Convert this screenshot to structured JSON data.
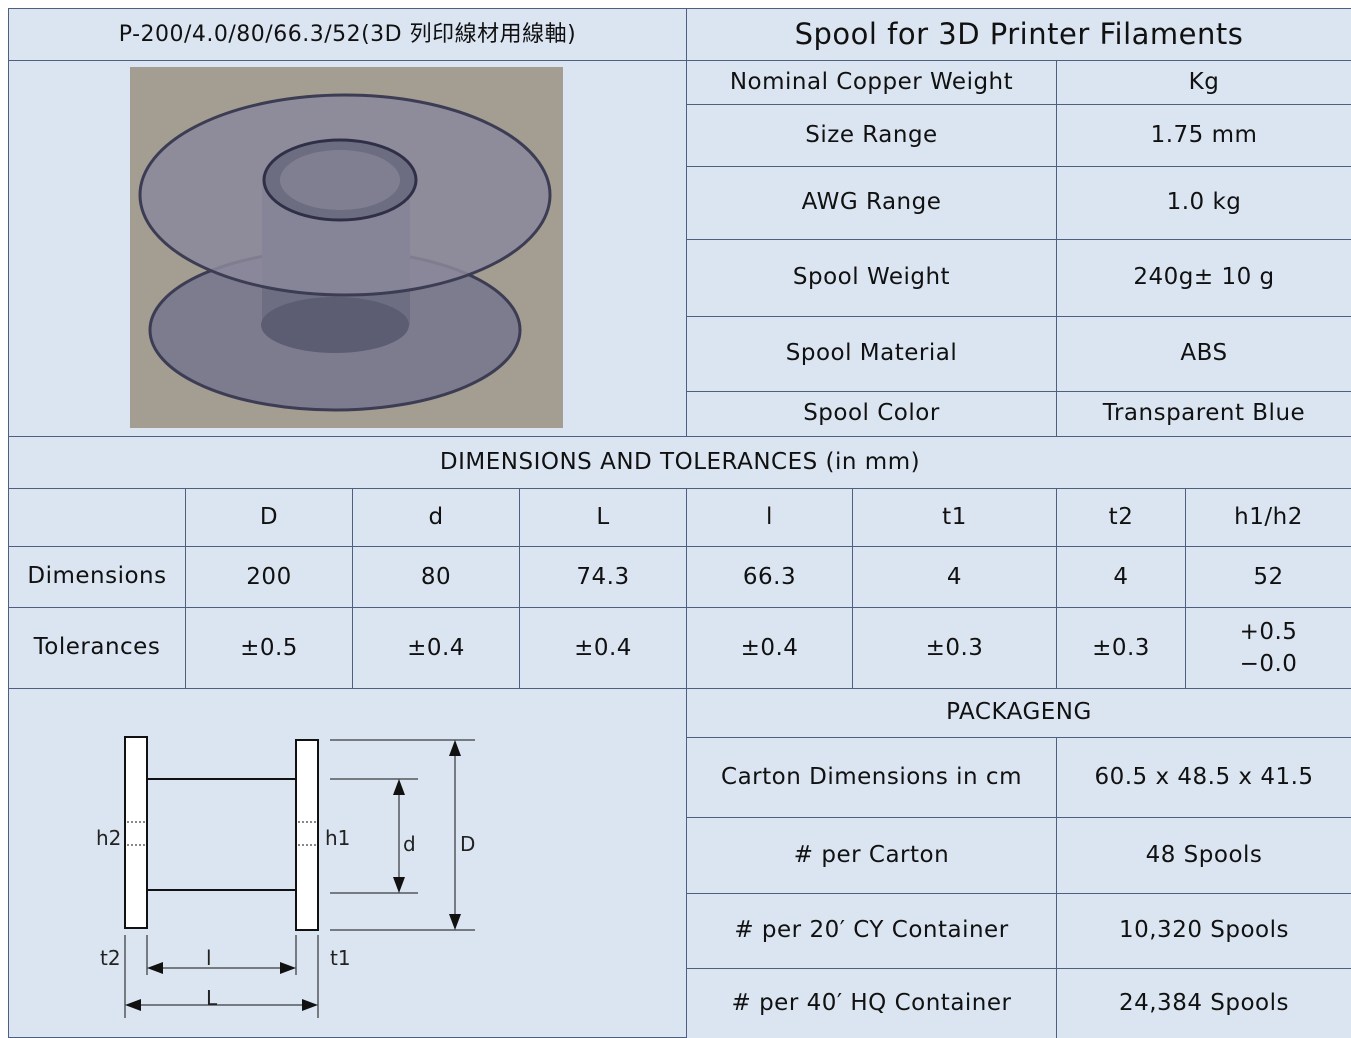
{
  "header": {
    "left": "P-200/4.0/80/66.3/52(3D 列印線材用線軸)",
    "right": "Spool for 3D Printer Filaments"
  },
  "specs": [
    [
      "Nominal Copper Weight",
      "Kg"
    ],
    [
      "Size Range",
      "1.75  mm"
    ],
    [
      "AWG Range",
      "1.0  kg"
    ],
    [
      "Spool Weight",
      "240g± 10 g"
    ],
    [
      "Spool Material",
      "ABS"
    ],
    [
      "Spool Color",
      "Transparent  Blue"
    ]
  ],
  "dimensions": {
    "title": "DIMENSIONS AND TOLERANCES (in mm)",
    "headers": [
      "D",
      "d",
      "L",
      "l",
      "t1",
      "t2",
      "h1/h2"
    ],
    "rows": [
      {
        "label": "Dimensions",
        "cells": [
          "200",
          "80",
          "74.3",
          "66.3",
          "4",
          "4",
          "52"
        ]
      },
      {
        "label": "Tolerances",
        "cells": [
          "±0.5",
          "±0.4",
          "±0.4",
          "±0.4",
          "±0.3",
          "±0.3",
          [
            "+0.5",
            "−0.0"
          ]
        ]
      }
    ]
  },
  "diagram": {
    "h2": "h2",
    "h1": "h1",
    "d": "d",
    "D": "D",
    "t2": "t2",
    "l": "l",
    "t1": "t1",
    "L": "L"
  },
  "packaging": {
    "title": "PACKAGENG",
    "rows": [
      [
        "Carton Dimensions in cm",
        "60.5 x 48.5 x 41.5"
      ],
      [
        "# per Carton",
        "48 Spools"
      ],
      [
        "# per 20′ CY Container",
        "10,320 Spools"
      ],
      [
        "# per 40′ HQ Container",
        "24,384 Spools"
      ]
    ]
  }
}
